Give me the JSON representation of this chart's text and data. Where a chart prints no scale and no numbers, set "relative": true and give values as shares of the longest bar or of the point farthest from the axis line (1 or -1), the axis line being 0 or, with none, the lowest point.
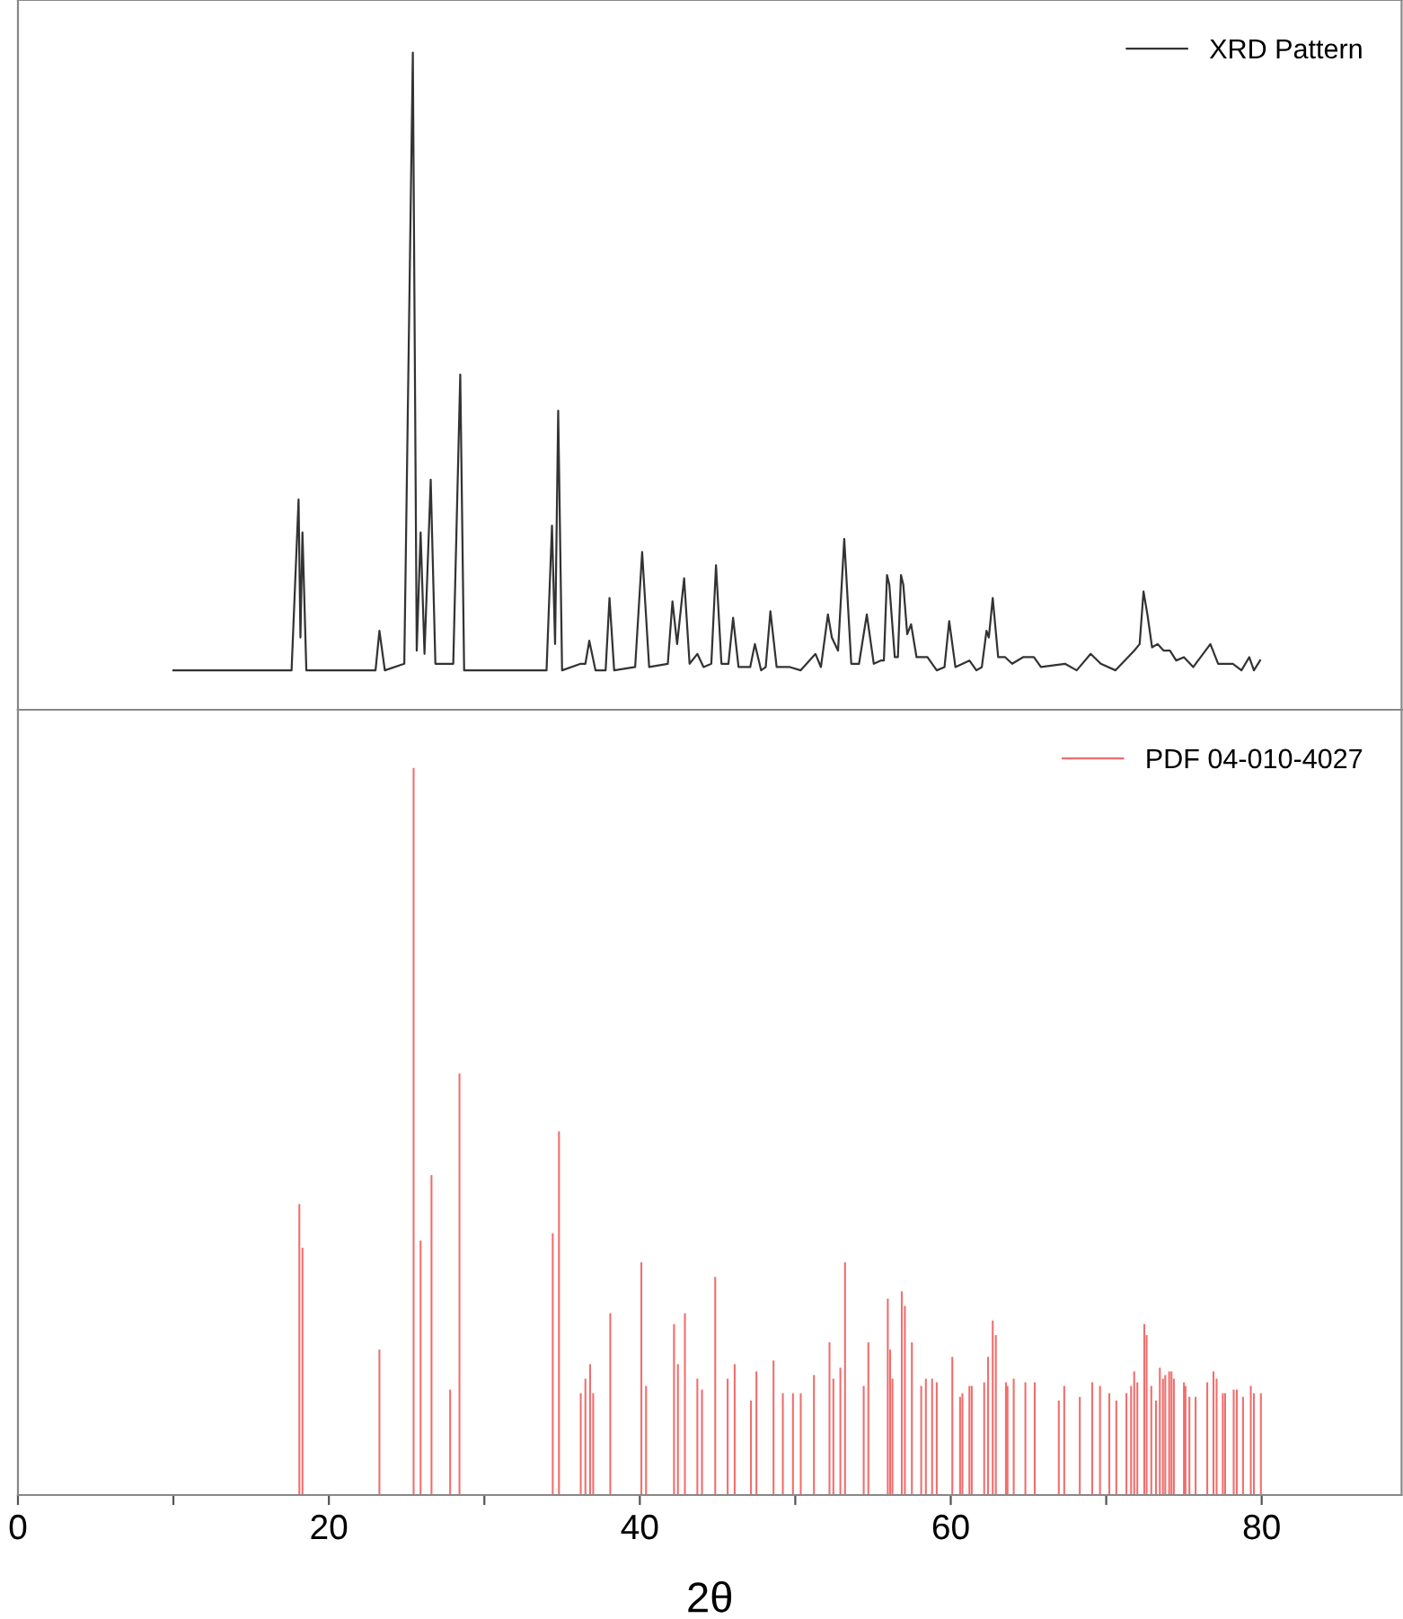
{
  "chart_data": [
    {
      "type": "line",
      "relative": true,
      "xlim": [
        0,
        89
      ],
      "tick_labels": false,
      "legend": "top right",
      "grid": false,
      "marker": "none",
      "line_style": "solid",
      "series": [
        {
          "name": "XRD Pattern",
          "color": "#333333",
          "x": [
            10.0,
            17.6,
            18.05,
            18.17,
            18.3,
            18.55,
            23.0,
            23.25,
            23.6,
            24.85,
            25.4,
            25.65,
            25.9,
            26.15,
            26.55,
            26.85,
            28.0,
            28.45,
            28.7,
            34.0,
            34.35,
            34.55,
            34.75,
            35.0,
            36.2,
            36.5,
            36.75,
            37.15,
            37.8,
            38.05,
            38.35,
            39.7,
            40.15,
            40.6,
            41.8,
            42.1,
            42.4,
            42.85,
            43.2,
            43.7,
            44.1,
            44.6,
            44.9,
            45.25,
            45.7,
            46.0,
            46.35,
            47.1,
            47.4,
            47.8,
            48.1,
            48.4,
            48.8,
            49.65,
            50.35,
            51.3,
            51.65,
            52.1,
            52.35,
            52.75,
            53.15,
            53.6,
            54.1,
            54.6,
            55.05,
            55.5,
            55.7,
            55.9,
            56.05,
            56.4,
            56.6,
            56.8,
            56.95,
            57.2,
            57.45,
            57.8,
            58.5,
            59.1,
            59.6,
            59.9,
            60.3,
            61.2,
            61.65,
            62.0,
            62.3,
            62.45,
            62.7,
            63.05,
            63.5,
            63.95,
            64.65,
            65.35,
            65.8,
            67.35,
            68.1,
            69.0,
            69.65,
            70.6,
            71.8,
            72.15,
            72.4,
            72.65,
            72.95,
            73.3,
            73.7,
            74.1,
            74.5,
            75.0,
            75.6,
            76.7,
            77.2,
            78.15,
            78.7,
            79.2,
            79.5,
            79.9
          ],
          "values": [
            0.06,
            0.06,
            0.32,
            0.11,
            0.27,
            0.06,
            0.06,
            0.12,
            0.06,
            0.07,
            1.0,
            0.09,
            0.27,
            0.085,
            0.35,
            0.07,
            0.07,
            0.51,
            0.06,
            0.06,
            0.28,
            0.1,
            0.455,
            0.06,
            0.07,
            0.07,
            0.105,
            0.06,
            0.06,
            0.17,
            0.06,
            0.065,
            0.24,
            0.065,
            0.07,
            0.165,
            0.1,
            0.2,
            0.07,
            0.085,
            0.065,
            0.07,
            0.22,
            0.07,
            0.07,
            0.14,
            0.065,
            0.065,
            0.1,
            0.06,
            0.065,
            0.15,
            0.065,
            0.065,
            0.06,
            0.085,
            0.065,
            0.145,
            0.11,
            0.09,
            0.26,
            0.07,
            0.07,
            0.145,
            0.07,
            0.075,
            0.075,
            0.205,
            0.19,
            0.08,
            0.08,
            0.205,
            0.19,
            0.115,
            0.13,
            0.08,
            0.08,
            0.06,
            0.065,
            0.135,
            0.065,
            0.075,
            0.06,
            0.065,
            0.12,
            0.11,
            0.17,
            0.08,
            0.08,
            0.07,
            0.08,
            0.08,
            0.065,
            0.07,
            0.06,
            0.085,
            0.07,
            0.06,
            0.09,
            0.1,
            0.18,
            0.145,
            0.095,
            0.1,
            0.09,
            0.09,
            0.075,
            0.08,
            0.065,
            0.1,
            0.07,
            0.07,
            0.06,
            0.08,
            0.06,
            0.075
          ]
        }
      ]
    },
    {
      "type": "bar",
      "relative": true,
      "xlim": [
        0,
        89
      ],
      "xticks": [
        0,
        {
          "value": 10,
          "label": null
        },
        20,
        {
          "value": 30,
          "label": null
        },
        40,
        {
          "value": 50,
          "label": null
        },
        60,
        {
          "value": 70,
          "label": null
        },
        80
      ],
      "tick_labels": "x",
      "xlabel": "2θ",
      "legend": "top right",
      "grid": false,
      "series": [
        {
          "name": "PDF 04-010-4027",
          "color": "#f26d6d",
          "x": [
            18.1,
            18.3,
            23.25,
            25.45,
            25.9,
            26.6,
            27.8,
            28.4,
            34.4,
            34.8,
            36.2,
            36.5,
            36.8,
            37.0,
            38.1,
            40.1,
            40.4,
            42.2,
            42.45,
            42.9,
            43.7,
            44.0,
            44.85,
            45.65,
            46.1,
            47.15,
            47.5,
            48.6,
            49.2,
            49.85,
            50.35,
            51.2,
            52.2,
            52.45,
            52.9,
            53.2,
            54.4,
            54.7,
            55.95,
            56.1,
            56.25,
            56.85,
            57.05,
            57.5,
            58.1,
            58.4,
            58.8,
            59.1,
            60.1,
            60.6,
            60.75,
            61.2,
            61.35,
            62.15,
            62.4,
            62.7,
            62.9,
            63.55,
            63.65,
            64.05,
            64.8,
            65.4,
            66.95,
            67.3,
            68.3,
            69.1,
            69.6,
            70.2,
            70.65,
            71.3,
            71.6,
            71.8,
            72.0,
            72.45,
            72.6,
            72.9,
            73.2,
            73.45,
            73.65,
            73.8,
            74.05,
            74.2,
            74.35,
            75.0,
            75.1,
            75.35,
            75.75,
            76.5,
            76.9,
            77.1,
            77.5,
            77.65,
            78.2,
            78.4,
            78.8,
            79.3,
            79.5,
            79.95
          ],
          "values": [
            0.4,
            0.34,
            0.2,
            1.0,
            0.35,
            0.44,
            0.145,
            0.58,
            0.36,
            0.5,
            0.14,
            0.16,
            0.18,
            0.14,
            0.25,
            0.32,
            0.15,
            0.235,
            0.18,
            0.25,
            0.16,
            0.145,
            0.3,
            0.16,
            0.18,
            0.13,
            0.17,
            0.185,
            0.14,
            0.14,
            0.14,
            0.165,
            0.21,
            0.16,
            0.175,
            0.32,
            0.15,
            0.21,
            0.27,
            0.2,
            0.16,
            0.28,
            0.26,
            0.21,
            0.15,
            0.16,
            0.16,
            0.155,
            0.19,
            0.135,
            0.14,
            0.15,
            0.15,
            0.155,
            0.19,
            0.24,
            0.22,
            0.155,
            0.15,
            0.16,
            0.155,
            0.155,
            0.13,
            0.15,
            0.135,
            0.155,
            0.15,
            0.14,
            0.13,
            0.14,
            0.15,
            0.17,
            0.155,
            0.235,
            0.22,
            0.15,
            0.13,
            0.175,
            0.16,
            0.165,
            0.17,
            0.17,
            0.16,
            0.155,
            0.15,
            0.135,
            0.135,
            0.155,
            0.17,
            0.16,
            0.14,
            0.14,
            0.145,
            0.145,
            0.135,
            0.15,
            0.14,
            0.14
          ]
        }
      ]
    }
  ]
}
